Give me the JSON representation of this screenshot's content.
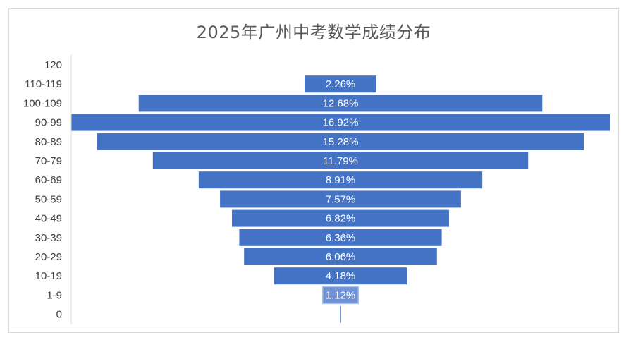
{
  "chart_data": {
    "type": "bar",
    "orientation": "horizontal",
    "layout": "centered-funnel",
    "title": "2025年广州中考数学成绩分布",
    "categories": [
      "120",
      "110-119",
      "100-109",
      "90-99",
      "80-89",
      "70-79",
      "60-69",
      "50-59",
      "40-49",
      "30-39",
      "20-29",
      "10-19",
      "1-9",
      "0"
    ],
    "values": [
      0,
      2.26,
      12.68,
      16.92,
      15.28,
      11.79,
      8.91,
      7.57,
      6.82,
      6.36,
      6.06,
      4.18,
      1.12,
      0
    ],
    "data_labels": [
      "",
      "2.26%",
      "12.68%",
      "16.92%",
      "15.28%",
      "11.79%",
      "8.91%",
      "7.57%",
      "6.82%",
      "6.36%",
      "6.06%",
      "4.18%",
      "1.12%",
      ""
    ],
    "colors": {
      "bar": "#4472c4",
      "highlight_bar": "#6f93d6",
      "label": "#ffffff",
      "axis_text": "#404040",
      "title": "#595959"
    },
    "legend": "none",
    "grid": false
  }
}
